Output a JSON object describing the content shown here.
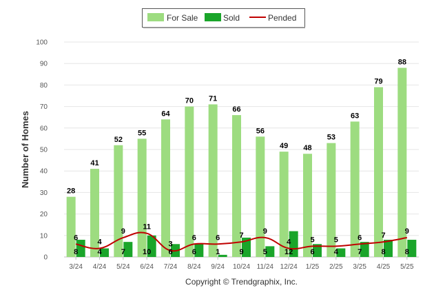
{
  "chart_data": {
    "type": "bar",
    "categories": [
      "3/24",
      "4/24",
      "5/24",
      "6/24",
      "7/24",
      "8/24",
      "9/24",
      "10/24",
      "11/24",
      "12/24",
      "1/25",
      "2/25",
      "3/25",
      "4/25",
      "5/25"
    ],
    "series": [
      {
        "name": "For Sale",
        "type": "bar",
        "color": "#9ddc80",
        "values": [
          28,
          41,
          52,
          55,
          64,
          70,
          71,
          66,
          56,
          49,
          48,
          53,
          63,
          79,
          88
        ]
      },
      {
        "name": "Sold",
        "type": "bar",
        "color": "#1aa52a",
        "values": [
          8,
          4,
          7,
          10,
          6,
          6,
          1,
          9,
          5,
          12,
          6,
          4,
          7,
          8,
          8
        ]
      },
      {
        "name": "Pended",
        "type": "line",
        "color": "#c00000",
        "values": [
          6,
          4,
          9,
          11,
          3,
          6,
          6,
          7,
          9,
          4,
          5,
          5,
          6,
          7,
          9
        ]
      }
    ],
    "ylabel": "Number of Homes",
    "xlabel": "",
    "ylim": [
      0,
      100
    ],
    "yticks": [
      0,
      10,
      20,
      30,
      40,
      50,
      60,
      70,
      80,
      90,
      100
    ],
    "grid": true,
    "legend_position": "top-center"
  },
  "footer": {
    "copyright": "Copyright © Trendgraphix, Inc."
  }
}
